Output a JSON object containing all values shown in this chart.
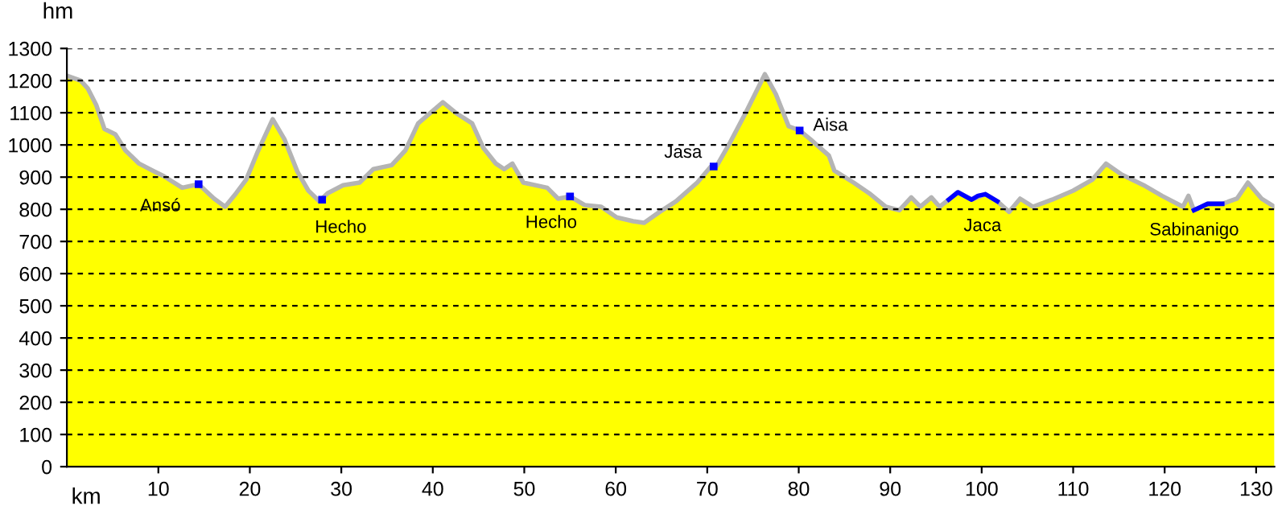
{
  "chart_data": {
    "type": "area",
    "xlabel": "km",
    "ylabel": "hm",
    "xlim": [
      0,
      132
    ],
    "ylim": [
      0,
      1300
    ],
    "xticks": [
      10,
      20,
      30,
      40,
      50,
      60,
      70,
      80,
      90,
      100,
      110,
      120,
      130
    ],
    "yticks": [
      0,
      100,
      200,
      300,
      400,
      500,
      600,
      700,
      800,
      900,
      1000,
      1100,
      1200,
      1300
    ],
    "grid": "y",
    "legend": false,
    "series": [
      {
        "color": "#ffff00",
        "x": [
          0,
          1.5,
          2.3,
          3.2,
          4.1,
          5.3,
          6.4,
          7.9,
          9.4,
          10.6,
          12.6,
          14.4,
          16.1,
          17.3,
          18.5,
          19.6,
          20.8,
          22.5,
          23.8,
          25.2,
          26.4,
          27.6,
          28.5,
          30.2,
          32,
          33.5,
          35.5,
          37,
          38.4,
          41.1,
          42.5,
          44.3,
          45.5,
          46.9,
          47.8,
          48.7,
          49.9,
          52.5,
          53.7,
          55,
          56.6,
          58.4,
          60.1,
          61.9,
          63.1,
          64.8,
          66.6,
          68.9,
          70.4,
          71,
          72.5,
          74.2,
          76.3,
          77.5,
          78.9,
          80.1,
          81.3,
          83.3,
          83.9,
          86,
          87.7,
          89.5,
          91,
          92.3,
          93.3,
          94.5,
          95.4,
          96.4,
          97.4,
          98.9,
          100.4,
          101.7,
          103,
          104.2,
          105.6,
          107.7,
          110,
          112.1,
          113.6,
          115.3,
          117.7,
          119.7,
          122,
          122.6,
          123.2,
          124.7,
          126.3,
          127.9,
          129.1,
          130.6,
          132
        ],
        "values": [
          1215,
          1200,
          1175,
          1125,
          1050,
          1033,
          983,
          942,
          920,
          903,
          867,
          878,
          833,
          808,
          850,
          892,
          975,
          1080,
          1017,
          917,
          858,
          825,
          850,
          875,
          883,
          925,
          937,
          983,
          1067,
          1133,
          1100,
          1067,
          992,
          942,
          925,
          942,
          883,
          867,
          833,
          840,
          813,
          808,
          775,
          763,
          758,
          792,
          825,
          883,
          933,
          933,
          1008,
          1100,
          1220,
          1158,
          1058,
          1045,
          1017,
          967,
          920,
          883,
          850,
          808,
          797,
          837,
          808,
          837,
          808,
          830,
          853,
          830,
          847,
          825,
          792,
          833,
          808,
          830,
          858,
          892,
          942,
          908,
          875,
          842,
          808,
          842,
          797,
          817,
          817,
          833,
          883,
          833,
          808
        ]
      },
      {
        "type": "scatter",
        "marker": "square",
        "color": "#0000ff",
        "x": [
          14.4,
          27.9,
          55,
          70.7,
          80.1
        ],
        "values": [
          878,
          830,
          840,
          933,
          1045
        ]
      },
      {
        "type": "line",
        "color": "#0000ff",
        "x": [
          96.4,
          97.4,
          98.9,
          99.6,
          100.4,
          101.7
        ],
        "values": [
          830,
          853,
          830,
          842,
          847,
          825
        ]
      },
      {
        "type": "line",
        "color": "#0000ff",
        "x": [
          123.2,
          124.7,
          126.3
        ],
        "values": [
          797,
          817,
          817
        ]
      }
    ],
    "annotations": [
      {
        "text": "Ansó",
        "x": 14.4,
        "y": 878
      },
      {
        "text": "Hecho",
        "x": 27.6,
        "y": 825
      },
      {
        "text": "Hecho",
        "x": 55,
        "y": 840
      },
      {
        "text": "Jasa",
        "x": 70.4,
        "y": 933
      },
      {
        "text": "Aisa",
        "x": 80.1,
        "y": 1045
      },
      {
        "text": "Jaca",
        "x": 99,
        "y": 830
      },
      {
        "text": "Sabinanigo",
        "x": 124.7,
        "y": 817
      }
    ]
  }
}
